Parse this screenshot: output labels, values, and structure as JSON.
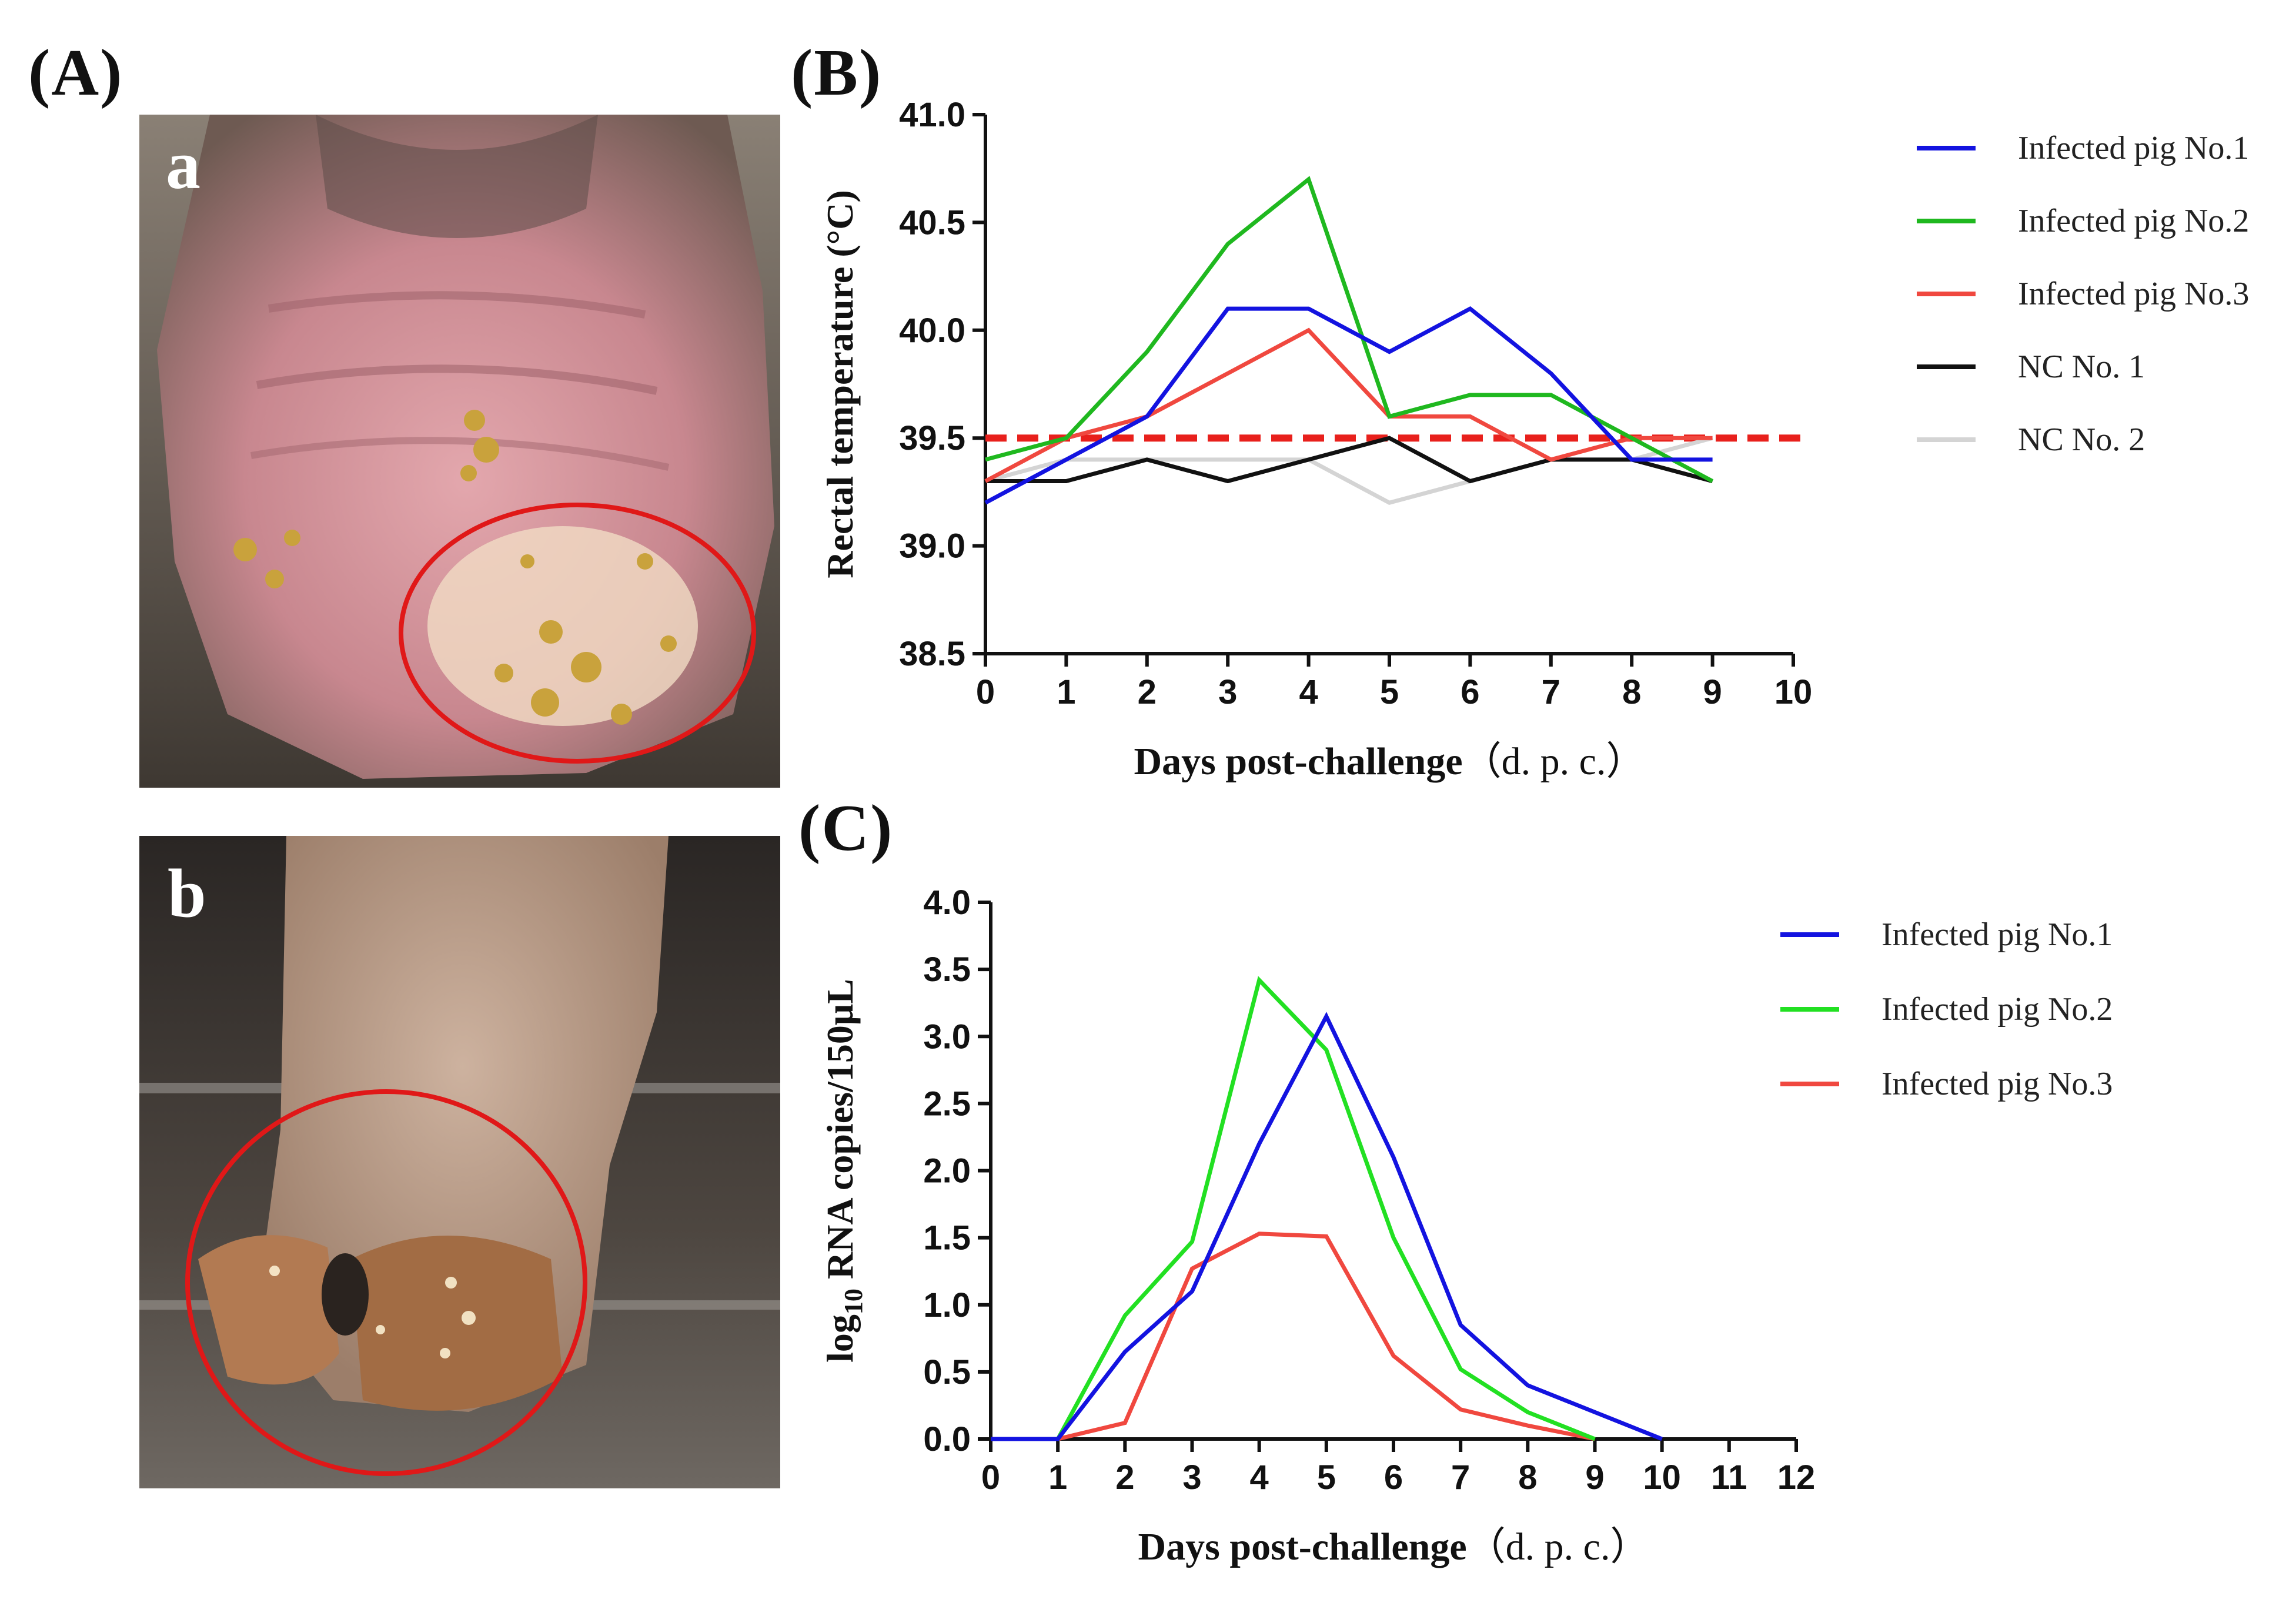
{
  "panel_labels": {
    "A": "(A)",
    "B": "(B)",
    "C": "(C)"
  },
  "photos": [
    {
      "label": "a"
    },
    {
      "label": "b"
    }
  ],
  "chart_data": [
    {
      "type": "line",
      "panel": "B",
      "xlabel": "Days post-challenge（d. p. c.）",
      "ylabel": "Rectal temperature (°C)",
      "xlim": [
        0,
        10
      ],
      "ylim": [
        38.5,
        41.0
      ],
      "xticks": [
        "0",
        "1",
        "2",
        "3",
        "4",
        "5",
        "6",
        "7",
        "8",
        "9",
        "10"
      ],
      "yticks": [
        "38.5",
        "39.0",
        "39.5",
        "40.0",
        "40.5",
        "41.0"
      ],
      "threshold": {
        "value": 39.5,
        "color": "#e8201c",
        "style": "dashed"
      },
      "series": [
        {
          "name": "Infected pig No.1",
          "color": "#1313e0",
          "x": [
            0,
            1,
            2,
            3,
            4,
            5,
            6,
            7,
            8,
            9
          ],
          "y": [
            39.2,
            39.4,
            39.6,
            40.1,
            40.1,
            39.9,
            40.1,
            39.8,
            39.4,
            39.4
          ]
        },
        {
          "name": "Infected pig No.2",
          "color": "#1fb81f",
          "x": [
            0,
            1,
            2,
            3,
            4,
            5,
            6,
            7,
            8,
            9
          ],
          "y": [
            39.4,
            39.5,
            39.9,
            40.4,
            40.7,
            39.6,
            39.7,
            39.7,
            39.5,
            39.3
          ]
        },
        {
          "name": "Infected pig No.3",
          "color": "#f0483f",
          "x": [
            0,
            1,
            2,
            3,
            4,
            5,
            6,
            7,
            8,
            9
          ],
          "y": [
            39.3,
            39.5,
            39.6,
            39.8,
            40.0,
            39.6,
            39.6,
            39.4,
            39.5,
            39.5
          ]
        },
        {
          "name": "NC No. 1",
          "color": "#111111",
          "x": [
            0,
            1,
            2,
            3,
            4,
            5,
            6,
            7,
            8,
            9
          ],
          "y": [
            39.3,
            39.3,
            39.4,
            39.3,
            39.4,
            39.5,
            39.3,
            39.4,
            39.4,
            39.3
          ]
        },
        {
          "name": "NC No. 2",
          "color": "#d4d4d4",
          "x": [
            0,
            1,
            2,
            3,
            4,
            5,
            6,
            7,
            8,
            9
          ],
          "y": [
            39.3,
            39.4,
            39.4,
            39.4,
            39.4,
            39.2,
            39.3,
            39.4,
            39.4,
            39.5
          ]
        }
      ]
    },
    {
      "type": "line",
      "panel": "C",
      "xlabel": "Days post-challenge（d. p. c.）",
      "ylabel_parts": {
        "prefix": "log",
        "sub": "10",
        "suffix": " RNA copies/150μL"
      },
      "xlim": [
        0,
        12
      ],
      "ylim": [
        0.0,
        4.0
      ],
      "xticks": [
        "0",
        "1",
        "2",
        "3",
        "4",
        "5",
        "6",
        "7",
        "8",
        "9",
        "10",
        "11",
        "12"
      ],
      "yticks": [
        "0.0",
        "0.5",
        "1.0",
        "1.5",
        "2.0",
        "2.5",
        "3.0",
        "3.5",
        "4.0"
      ],
      "series": [
        {
          "name": "Infected pig No.1",
          "color": "#1313e0",
          "x": [
            0,
            1,
            2,
            3,
            4,
            5,
            6,
            7,
            8,
            9,
            10
          ],
          "y": [
            0,
            0,
            0.65,
            1.1,
            2.2,
            3.15,
            2.1,
            0.85,
            0.4,
            0.2,
            0
          ]
        },
        {
          "name": "Infected pig No.2",
          "color": "#22e022",
          "x": [
            0,
            1,
            2,
            3,
            4,
            5,
            6,
            7,
            8,
            9
          ],
          "y": [
            0,
            0,
            0.92,
            1.47,
            3.42,
            2.9,
            1.5,
            0.52,
            0.2,
            0
          ]
        },
        {
          "name": "Infected pig No.3",
          "color": "#f0483f",
          "x": [
            0,
            1,
            2,
            3,
            4,
            5,
            6,
            7,
            8,
            9
          ],
          "y": [
            0,
            0,
            0.12,
            1.27,
            1.53,
            1.51,
            0.62,
            0.22,
            0.1,
            0
          ]
        }
      ]
    }
  ]
}
